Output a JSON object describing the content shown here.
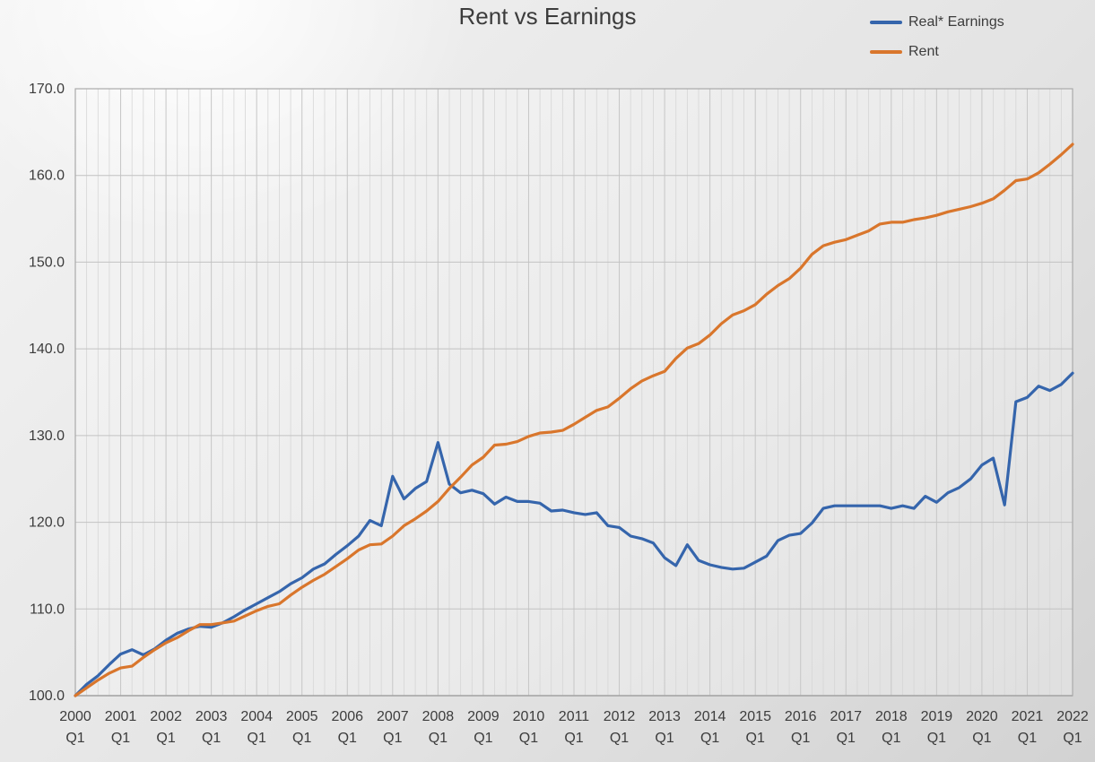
{
  "chart_data": {
    "type": "line",
    "title": "Rent vs Earnings",
    "xlabel": "",
    "ylabel": "",
    "ylim": [
      100.0,
      170.0
    ],
    "y_tick_step": 10,
    "y_tick_labels": [
      "100.0",
      "110.0",
      "120.0",
      "130.0",
      "140.0",
      "150.0",
      "160.0",
      "170.0"
    ],
    "x_tick_years": [
      "2000",
      "2001",
      "2002",
      "2003",
      "2004",
      "2005",
      "2006",
      "2007",
      "2008",
      "2009",
      "2010",
      "2011",
      "2012",
      "2013",
      "2014",
      "2015",
      "2016",
      "2017",
      "2018",
      "2019",
      "2020",
      "2021",
      "2022"
    ],
    "x_tick_sub": "Q1",
    "quarters_per_year": 4,
    "grid": {
      "minor_vertical": "quarterly",
      "major_horizontal": true
    },
    "legend_position": "top-right",
    "series": [
      {
        "name": "Real* Earnings",
        "color": "#3565ac",
        "values": [
          100.0,
          101.3,
          102.3,
          103.6,
          104.8,
          105.3,
          104.7,
          105.4,
          106.4,
          107.2,
          107.7,
          108.0,
          107.9,
          108.4,
          109.1,
          109.9,
          110.6,
          111.3,
          112.0,
          112.9,
          113.6,
          114.6,
          115.2,
          116.3,
          117.3,
          118.4,
          120.2,
          119.6,
          125.3,
          122.7,
          123.9,
          124.7,
          129.2,
          124.4,
          123.4,
          123.7,
          123.3,
          122.1,
          122.9,
          122.4,
          122.4,
          122.2,
          121.3,
          121.4,
          121.1,
          120.9,
          121.1,
          119.6,
          119.4,
          118.4,
          118.1,
          117.6,
          115.9,
          115.0,
          117.4,
          115.6,
          115.1,
          114.8,
          114.6,
          114.7,
          115.4,
          116.1,
          117.9,
          118.5,
          118.7,
          119.9,
          121.6,
          121.9,
          121.9,
          121.9,
          121.9,
          121.9,
          121.6,
          121.9,
          121.6,
          123.0,
          122.3,
          123.4,
          124.0,
          125.0,
          126.6,
          127.4,
          122.0,
          133.9,
          134.4,
          135.7,
          135.2,
          135.9,
          137.2
        ]
      },
      {
        "name": "Rent",
        "color": "#d9762c",
        "values": [
          100.0,
          100.9,
          101.8,
          102.6,
          103.2,
          103.4,
          104.4,
          105.3,
          106.1,
          106.7,
          107.5,
          108.2,
          108.2,
          108.4,
          108.6,
          109.2,
          109.8,
          110.3,
          110.6,
          111.6,
          112.5,
          113.3,
          114.0,
          114.9,
          115.8,
          116.8,
          117.4,
          117.5,
          118.4,
          119.6,
          120.4,
          121.3,
          122.4,
          123.9,
          125.2,
          126.6,
          127.5,
          128.9,
          129.0,
          129.3,
          129.9,
          130.3,
          130.4,
          130.6,
          131.3,
          132.1,
          132.9,
          133.3,
          134.3,
          135.4,
          136.3,
          136.9,
          137.4,
          138.9,
          140.1,
          140.6,
          141.6,
          142.9,
          143.9,
          144.4,
          145.1,
          146.3,
          147.3,
          148.1,
          149.3,
          150.9,
          151.9,
          152.3,
          152.6,
          153.1,
          153.6,
          154.4,
          154.6,
          154.6,
          154.9,
          155.1,
          155.4,
          155.8,
          156.1,
          156.4,
          156.8,
          157.3,
          158.3,
          159.4,
          159.6,
          160.3,
          161.3,
          162.4,
          163.6
        ]
      }
    ]
  },
  "colors": {
    "text": "#3c3c3c",
    "grid_minor": "#d6d6d6",
    "grid_major_vertical": "#c6c6c6",
    "grid_horizontal": "#c2c2c2",
    "plot_border": "#aaaaaa",
    "axis_bottom": "#9a9a9a"
  }
}
